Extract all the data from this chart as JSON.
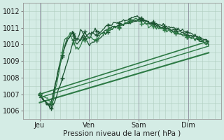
{
  "xlabel": "Pression niveau de la mer( hPa )",
  "bg_color": "#d4ece5",
  "grid_color": "#b0ccbf",
  "line_color_light": "#2d7a45",
  "line_color_dark": "#1a5230",
  "xlim": [
    0,
    96
  ],
  "ylim": [
    1005.5,
    1012.5
  ],
  "yticks": [
    1006,
    1007,
    1008,
    1009,
    1010,
    1011,
    1012
  ],
  "xtick_labels": [
    "Jeu",
    "Ven",
    "Sam",
    "Dim"
  ],
  "xtick_positions": [
    8,
    32,
    56,
    80
  ],
  "day_lines": [
    8,
    32,
    56,
    80
  ]
}
